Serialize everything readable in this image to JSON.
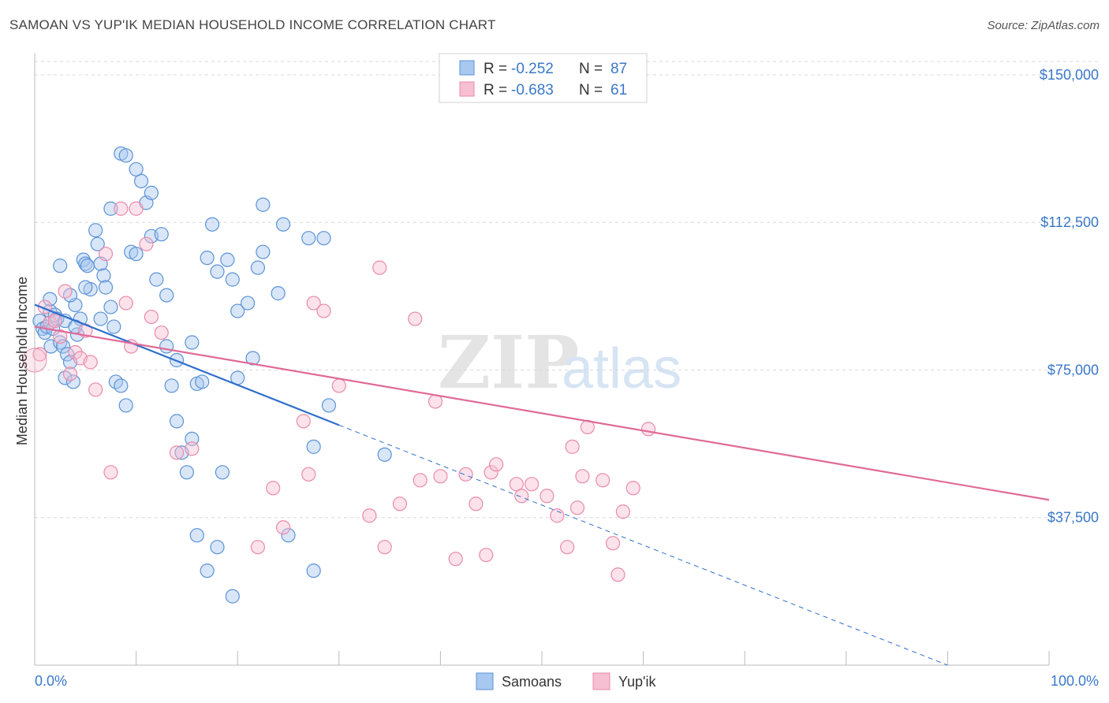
{
  "header": {
    "title": "SAMOAN VS YUP'IK MEDIAN HOUSEHOLD INCOME CORRELATION CHART",
    "source": "Source: ZipAtlas.com"
  },
  "legend_box": {
    "rows": [
      {
        "r_label": "R =",
        "r_value": "-0.252",
        "n_label": "N =",
        "n_value": "87"
      },
      {
        "r_label": "R =",
        "r_value": "-0.683",
        "n_label": "N =",
        "n_value": "61"
      }
    ]
  },
  "bottom_legend": [
    "Samoans",
    "Yup'ik"
  ],
  "watermark": {
    "zip": "ZIP",
    "atlas": "atlas"
  },
  "colors": {
    "samoans_fill": "#a8c8f0",
    "samoans_stroke": "#5b93d6",
    "samoans_line": "#2f6fcc",
    "yupik_fill": "#f7bfd2",
    "yupik_stroke": "#ea8aab",
    "yupik_line": "#e06a96",
    "tick_label": "#3a78c9",
    "grid": "#d8d8d8"
  },
  "chart_data": {
    "type": "scatter",
    "title": "SAMOAN VS YUP'IK MEDIAN HOUSEHOLD INCOME CORRELATION CHART",
    "xlabel": "",
    "ylabel": "Median Household Income",
    "xlim": [
      0,
      100
    ],
    "ylim": [
      0,
      157000
    ],
    "x_tick_labels": [
      "0.0%",
      "100.0%"
    ],
    "y_ticks": [
      37500,
      75000,
      112500,
      150000
    ],
    "y_tick_labels": [
      "$37,500",
      "$75,000",
      "$112,500",
      "$150,000"
    ],
    "grid": true,
    "legend_position": "top-center",
    "series": [
      {
        "name": "Samoans",
        "r": -0.252,
        "n": 87,
        "trend": {
          "x0": 0,
          "y0": 91600,
          "x1": 30,
          "y1": 61000,
          "dashed_to_x": 90,
          "dashed_to_y": 0
        },
        "points": [
          [
            0.5,
            87500
          ],
          [
            0.8,
            85500
          ],
          [
            1.0,
            84500
          ],
          [
            1.2,
            86000
          ],
          [
            1.5,
            90000
          ],
          [
            1.8,
            85500
          ],
          [
            1.5,
            93000
          ],
          [
            1.6,
            81000
          ],
          [
            2.0,
            89000
          ],
          [
            2.2,
            88000
          ],
          [
            2.5,
            82000
          ],
          [
            2.8,
            81000
          ],
          [
            3.0,
            87500
          ],
          [
            3.2,
            79000
          ],
          [
            3.0,
            73000
          ],
          [
            3.5,
            77000
          ],
          [
            3.8,
            72000
          ],
          [
            4.0,
            91500
          ],
          [
            4.2,
            84000
          ],
          [
            4.5,
            88000
          ],
          [
            4.8,
            103000
          ],
          [
            5.0,
            102000
          ],
          [
            5.2,
            101500
          ],
          [
            5.5,
            95500
          ],
          [
            6.0,
            110500
          ],
          [
            6.2,
            107000
          ],
          [
            6.5,
            102000
          ],
          [
            6.8,
            99000
          ],
          [
            7.0,
            96000
          ],
          [
            7.5,
            91000
          ],
          [
            7.8,
            86000
          ],
          [
            8.0,
            72000
          ],
          [
            8.5,
            71000
          ],
          [
            9.0,
            66000
          ],
          [
            9.5,
            105000
          ],
          [
            10.0,
            104500
          ],
          [
            10.5,
            123000
          ],
          [
            11.0,
            117500
          ],
          [
            11.5,
            120000
          ],
          [
            12.0,
            98000
          ],
          [
            13.0,
            81000
          ],
          [
            13.5,
            71000
          ],
          [
            14.0,
            62000
          ],
          [
            14.5,
            54000
          ],
          [
            15.0,
            49000
          ],
          [
            15.5,
            57500
          ],
          [
            16.0,
            71500
          ],
          [
            16.5,
            72000
          ],
          [
            17.0,
            103500
          ],
          [
            17.5,
            112000
          ],
          [
            18.0,
            100000
          ],
          [
            18.5,
            49000
          ],
          [
            19.0,
            103000
          ],
          [
            19.5,
            98000
          ],
          [
            20.0,
            90000
          ],
          [
            21.0,
            92000
          ],
          [
            22.0,
            101000
          ],
          [
            2.5,
            101500
          ],
          [
            3.5,
            94000
          ],
          [
            4.0,
            86000
          ],
          [
            5.0,
            96000
          ],
          [
            6.5,
            88000
          ],
          [
            7.5,
            116000
          ],
          [
            8.5,
            130000
          ],
          [
            9.0,
            129500
          ],
          [
            10.0,
            126000
          ],
          [
            11.5,
            109000
          ],
          [
            12.5,
            109500
          ],
          [
            13.0,
            94000
          ],
          [
            14.0,
            77500
          ],
          [
            15.5,
            82000
          ],
          [
            16.0,
            33000
          ],
          [
            17.0,
            24000
          ],
          [
            18.0,
            30000
          ],
          [
            20.0,
            73000
          ],
          [
            21.5,
            78000
          ],
          [
            22.5,
            117000
          ],
          [
            24.0,
            94500
          ],
          [
            25.0,
            33000
          ],
          [
            27.5,
            24000
          ],
          [
            19.5,
            17500
          ],
          [
            22.5,
            105000
          ],
          [
            24.5,
            112000
          ],
          [
            27.0,
            108500
          ],
          [
            28.5,
            108500
          ],
          [
            27.5,
            55500
          ],
          [
            29.0,
            66000
          ],
          [
            34.5,
            53500
          ]
        ]
      },
      {
        "name": "Yup'ik",
        "r": -0.683,
        "n": 61,
        "trend": {
          "x0": 0,
          "y0": 86000,
          "x1": 100,
          "y1": 42000
        },
        "points": [
          [
            0.5,
            79000
          ],
          [
            1.0,
            91000
          ],
          [
            1.5,
            87000
          ],
          [
            2.0,
            87500
          ],
          [
            2.5,
            83500
          ],
          [
            3.0,
            95000
          ],
          [
            3.5,
            74000
          ],
          [
            4.0,
            79500
          ],
          [
            4.5,
            78000
          ],
          [
            5.0,
            85000
          ],
          [
            5.5,
            77000
          ],
          [
            6.0,
            70000
          ],
          [
            7.0,
            104500
          ],
          [
            7.5,
            49000
          ],
          [
            8.5,
            116000
          ],
          [
            9.0,
            92000
          ],
          [
            9.5,
            81000
          ],
          [
            10.0,
            116000
          ],
          [
            11.0,
            107000
          ],
          [
            11.5,
            88500
          ],
          [
            12.5,
            84500
          ],
          [
            14.0,
            54000
          ],
          [
            15.5,
            55000
          ],
          [
            22.0,
            30000
          ],
          [
            23.5,
            45000
          ],
          [
            24.5,
            35000
          ],
          [
            26.5,
            62000
          ],
          [
            27.0,
            48500
          ],
          [
            27.5,
            92000
          ],
          [
            28.5,
            90000
          ],
          [
            30.0,
            71000
          ],
          [
            33.0,
            38000
          ],
          [
            34.0,
            101000
          ],
          [
            34.5,
            30000
          ],
          [
            36.0,
            41000
          ],
          [
            37.5,
            88000
          ],
          [
            38.0,
            47000
          ],
          [
            39.5,
            67000
          ],
          [
            40.0,
            48000
          ],
          [
            41.5,
            27000
          ],
          [
            42.5,
            48500
          ],
          [
            43.5,
            41000
          ],
          [
            44.5,
            28000
          ],
          [
            45.0,
            49000
          ],
          [
            45.5,
            51000
          ],
          [
            47.5,
            46000
          ],
          [
            48.0,
            43000
          ],
          [
            49.0,
            46000
          ],
          [
            50.5,
            43000
          ],
          [
            51.5,
            38000
          ],
          [
            52.5,
            30000
          ],
          [
            53.0,
            55500
          ],
          [
            53.5,
            40000
          ],
          [
            54.0,
            48000
          ],
          [
            54.5,
            60500
          ],
          [
            56.0,
            47000
          ],
          [
            57.0,
            31000
          ],
          [
            57.5,
            23000
          ],
          [
            58.0,
            39000
          ],
          [
            59.0,
            45000
          ],
          [
            60.5,
            60000
          ]
        ]
      }
    ]
  }
}
